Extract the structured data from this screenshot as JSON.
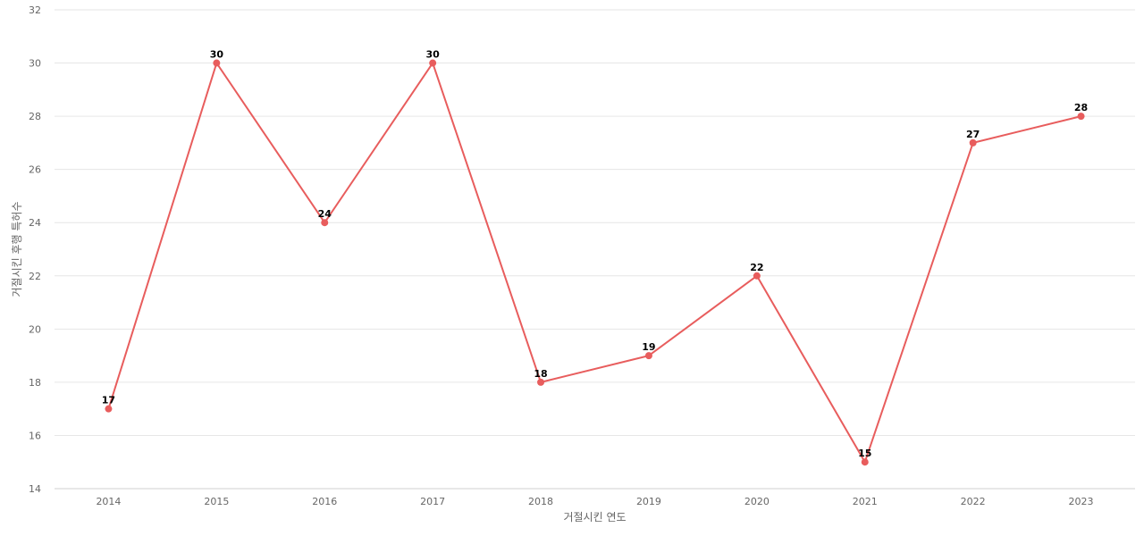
{
  "chart_data": {
    "type": "line",
    "title": "",
    "xlabel": "거절시킨 연도",
    "ylabel": "거절시킨 후행 특허수",
    "categories": [
      "2014",
      "2015",
      "2016",
      "2017",
      "2018",
      "2019",
      "2020",
      "2021",
      "2022",
      "2023"
    ],
    "series": [
      {
        "values": [
          17,
          30,
          24,
          30,
          18,
          19,
          22,
          15,
          27,
          28
        ],
        "color": "#e85d5d"
      }
    ],
    "ylim": [
      14,
      32
    ],
    "yticks": [
      14,
      16,
      18,
      20,
      22,
      24,
      26,
      28,
      30,
      32
    ],
    "grid": true,
    "legend": "none",
    "data_labels": true
  }
}
